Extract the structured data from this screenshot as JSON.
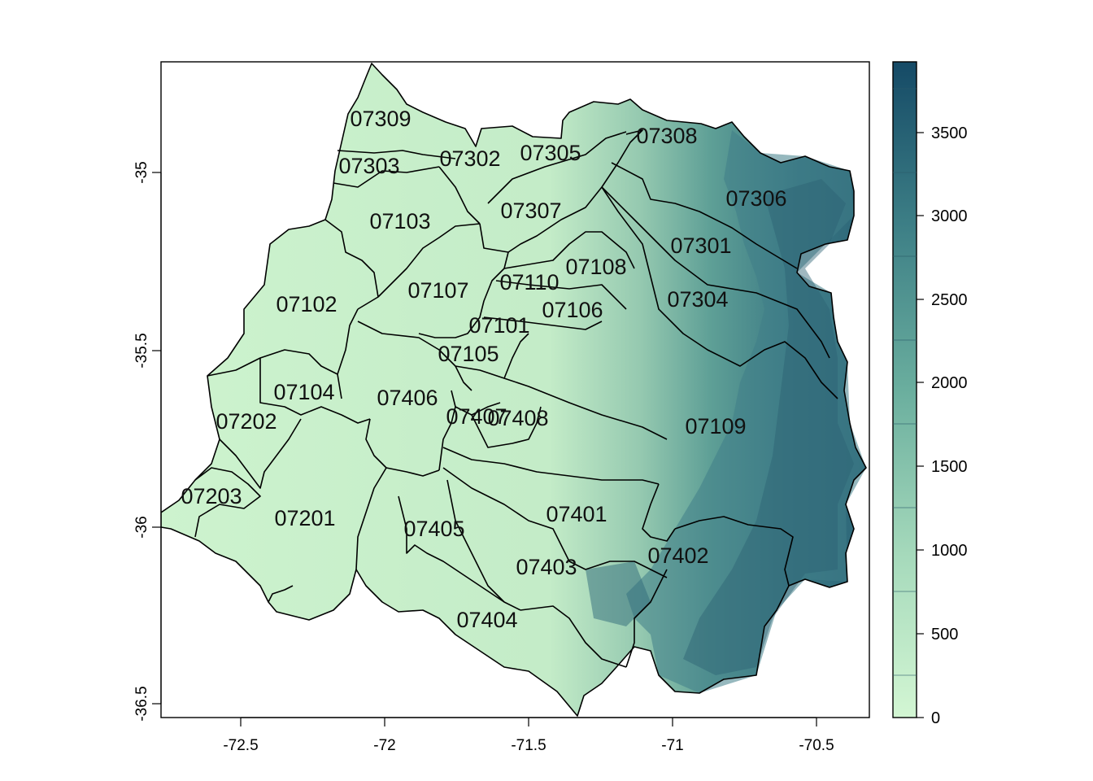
{
  "map": {
    "x_ticks": [
      "-72.5",
      "-72",
      "-71.5",
      "-71",
      "-70.5"
    ],
    "y_ticks": [
      "-35",
      "-35.5",
      "-36",
      "-36.5"
    ],
    "regions": [
      {
        "code": "07309"
      },
      {
        "code": "07308"
      },
      {
        "code": "07303"
      },
      {
        "code": "07302"
      },
      {
        "code": "07305"
      },
      {
        "code": "07306"
      },
      {
        "code": "07103"
      },
      {
        "code": "07307"
      },
      {
        "code": "07301"
      },
      {
        "code": "07108"
      },
      {
        "code": "07110"
      },
      {
        "code": "07107"
      },
      {
        "code": "07102"
      },
      {
        "code": "07304"
      },
      {
        "code": "07106"
      },
      {
        "code": "07101"
      },
      {
        "code": "07105"
      },
      {
        "code": "07104"
      },
      {
        "code": "07406"
      },
      {
        "code": "07202"
      },
      {
        "code": "07407"
      },
      {
        "code": "07408"
      },
      {
        "code": "07109"
      },
      {
        "code": "07203"
      },
      {
        "code": "07201"
      },
      {
        "code": "07401"
      },
      {
        "code": "07405"
      },
      {
        "code": "07402"
      },
      {
        "code": "07403"
      },
      {
        "code": "07404"
      }
    ]
  },
  "colorbar": {
    "ticks": [
      "0",
      "500",
      "1000",
      "1500",
      "2000",
      "2500",
      "3000",
      "3500"
    ],
    "colors": {
      "low": "#d3f6d3",
      "mid_low": "#a5d9bb",
      "mid": "#6aae9e",
      "mid_high": "#3d7f86",
      "high": "#154a66"
    }
  }
}
